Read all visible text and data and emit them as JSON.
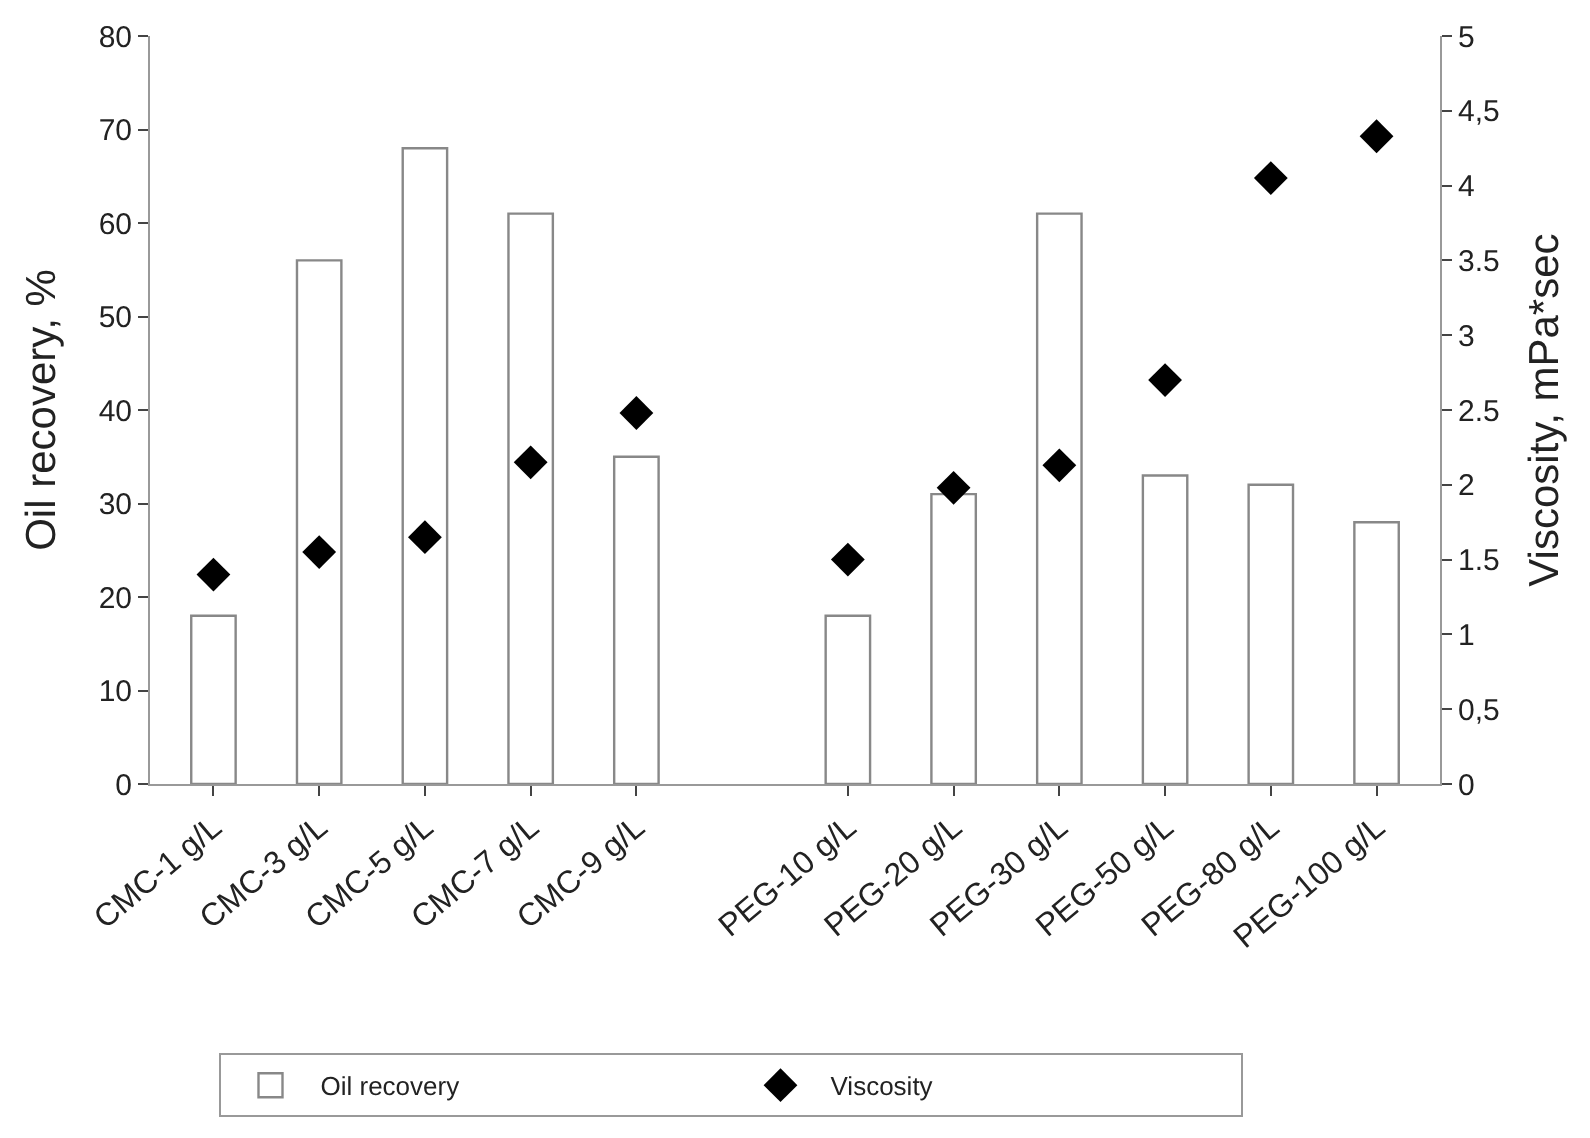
{
  "chart_data": {
    "type": "bar",
    "ylabel": "Oil recovery, %",
    "y2label": "Viscosity, mPa*sec",
    "categories": [
      "CMC-1 g/L",
      "CMC-3 g/L",
      "CMC-5 g/L",
      "CMC-7 g/L",
      "CMC-9 g/L",
      null,
      "PEG-10 g/L",
      "PEG-20 g/L",
      "PEG-30 g/L",
      "PEG-50 g/L",
      "PEG-80 g/L",
      "PEG-100 g/L"
    ],
    "series": [
      {
        "name": "Oil recovery",
        "color": "#ffffff",
        "values": [
          18,
          56,
          68,
          61,
          35,
          null,
          18,
          31,
          61,
          33,
          32,
          28
        ]
      },
      {
        "name": "Viscosity",
        "type": "scatter",
        "axis": "y2",
        "color": "#000000",
        "marker": "diamond",
        "values": [
          1.4,
          1.55,
          1.65,
          2.15,
          2.48,
          null,
          1.5,
          1.98,
          2.13,
          2.7,
          4.05,
          4.33
        ]
      }
    ],
    "ylim": [
      0,
      80
    ],
    "yticks": [
      0,
      10,
      20,
      30,
      40,
      50,
      60,
      70,
      80
    ],
    "y2lim": [
      0,
      5
    ],
    "y2ticks": [
      0,
      {
        "value": 0.5,
        "label": "0,5"
      },
      1,
      1.5,
      2,
      2.5,
      3,
      3.5,
      4,
      {
        "value": 4.5,
        "label": "4,5"
      },
      5
    ],
    "legend": "bottom"
  }
}
